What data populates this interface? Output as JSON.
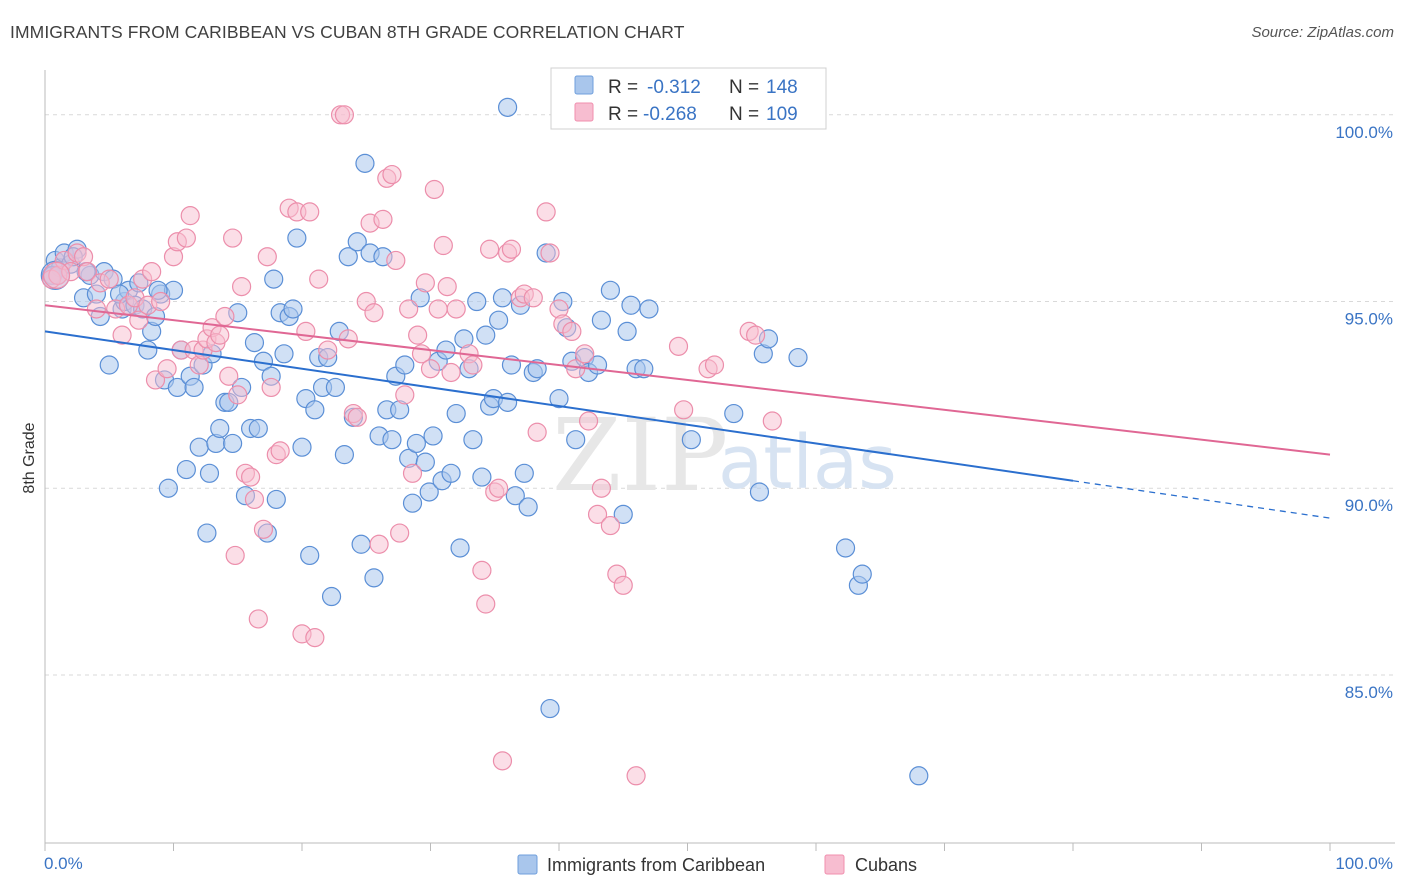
{
  "header": {
    "title": "IMMIGRANTS FROM CARIBBEAN VS CUBAN 8TH GRADE CORRELATION CHART",
    "source": "Source: ZipAtlas.com"
  },
  "watermark": {
    "zip": "ZIP",
    "atlas": "atlas"
  },
  "legend": {
    "r_label": "R =",
    "n_label": "N =",
    "entries": [
      {
        "r": "-0.312",
        "n": "148",
        "color": "#6f9fdc"
      },
      {
        "r": "-0.268",
        "n": "109",
        "color": "#f08fae"
      }
    ]
  },
  "colors": {
    "blue_fill": "#a9c6ec",
    "blue_stroke": "#5b8fd6",
    "blue_line": "#2b6fce",
    "pink_fill": "#f7bdd0",
    "pink_stroke": "#ec8eab",
    "pink_line": "#e06794",
    "grid": "#d9d9d9",
    "tick_label": "#3a74c4"
  },
  "chart_data": {
    "type": "scatter",
    "title": "IMMIGRANTS FROM CARIBBEAN VS CUBAN 8TH GRADE CORRELATION CHART",
    "xlabel": "",
    "ylabel": "8th Grade",
    "xlim": [
      0,
      100
    ],
    "ylim": [
      80.5,
      101.2
    ],
    "x_tick_labels": [
      "0.0%",
      "100.0%"
    ],
    "y_ticks": [
      85,
      90,
      95,
      100
    ],
    "y_tick_labels": [
      "85.0%",
      "90.0%",
      "95.0%",
      "100.0%"
    ],
    "grid": "horizontal dashed",
    "legend_position": "top-center",
    "series": [
      {
        "name": "Immigrants from Caribbean",
        "r": -0.312,
        "n": 148,
        "trend": {
          "x0": 0,
          "y0": 94.2,
          "x1": 80,
          "y1": 90.2,
          "x_dashed_end": 100,
          "y_dashed_end": 89.2
        },
        "points": [
          [
            0.5,
            95.7
          ],
          [
            0.8,
            96.1
          ],
          [
            1.2,
            95.9
          ],
          [
            1.5,
            96.3
          ],
          [
            2,
            96.0
          ],
          [
            2.5,
            96.4
          ],
          [
            3,
            95.1
          ],
          [
            3.5,
            95.7
          ],
          [
            4,
            95.2
          ],
          [
            4.3,
            94.6
          ],
          [
            4.6,
            95.8
          ],
          [
            5,
            93.3
          ],
          [
            5.3,
            95.6
          ],
          [
            6,
            94.8
          ],
          [
            6.2,
            95.0
          ],
          [
            6.5,
            95.3
          ],
          [
            7,
            94.9
          ],
          [
            7.3,
            95.5
          ],
          [
            7.6,
            94.8
          ],
          [
            8,
            93.7
          ],
          [
            8.3,
            94.2
          ],
          [
            8.6,
            94.6
          ],
          [
            9,
            95.2
          ],
          [
            9.3,
            92.9
          ],
          [
            9.6,
            90.0
          ],
          [
            10,
            95.3
          ],
          [
            10.3,
            92.7
          ],
          [
            10.6,
            93.7
          ],
          [
            11,
            90.5
          ],
          [
            11.3,
            93.0
          ],
          [
            11.6,
            92.7
          ],
          [
            12,
            91.1
          ],
          [
            12.3,
            93.3
          ],
          [
            12.6,
            88.8
          ],
          [
            12.8,
            90.4
          ],
          [
            13,
            93.6
          ],
          [
            13.3,
            91.2
          ],
          [
            13.6,
            91.6
          ],
          [
            14,
            92.3
          ],
          [
            14.3,
            92.3
          ],
          [
            14.6,
            91.2
          ],
          [
            15,
            94.7
          ],
          [
            15.3,
            92.7
          ],
          [
            15.6,
            89.8
          ],
          [
            16,
            91.6
          ],
          [
            16.3,
            93.9
          ],
          [
            16.6,
            91.6
          ],
          [
            17,
            93.4
          ],
          [
            17.3,
            88.8
          ],
          [
            17.6,
            93.0
          ],
          [
            17.8,
            95.6
          ],
          [
            18,
            89.7
          ],
          [
            18.3,
            94.7
          ],
          [
            18.6,
            93.6
          ],
          [
            19,
            94.6
          ],
          [
            19.3,
            94.8
          ],
          [
            19.6,
            96.7
          ],
          [
            20,
            91.1
          ],
          [
            20.3,
            92.4
          ],
          [
            20.6,
            88.2
          ],
          [
            21,
            92.1
          ],
          [
            21.3,
            93.5
          ],
          [
            21.6,
            92.7
          ],
          [
            22,
            93.5
          ],
          [
            22.3,
            87.1
          ],
          [
            22.6,
            92.7
          ],
          [
            22.9,
            94.2
          ],
          [
            23.3,
            90.9
          ],
          [
            23.6,
            96.2
          ],
          [
            24,
            91.9
          ],
          [
            24.3,
            96.6
          ],
          [
            24.6,
            88.5
          ],
          [
            24.9,
            98.7
          ],
          [
            25.3,
            96.3
          ],
          [
            25.6,
            87.6
          ],
          [
            26,
            91.4
          ],
          [
            26.3,
            96.2
          ],
          [
            26.6,
            92.1
          ],
          [
            27,
            91.3
          ],
          [
            27.3,
            93.0
          ],
          [
            27.6,
            92.1
          ],
          [
            28,
            93.3
          ],
          [
            28.3,
            90.8
          ],
          [
            28.6,
            89.6
          ],
          [
            28.9,
            91.2
          ],
          [
            29.2,
            95.1
          ],
          [
            29.6,
            90.7
          ],
          [
            29.9,
            89.9
          ],
          [
            30.2,
            91.4
          ],
          [
            30.6,
            93.4
          ],
          [
            30.9,
            90.2
          ],
          [
            31.2,
            93.7
          ],
          [
            31.6,
            90.4
          ],
          [
            32,
            92.0
          ],
          [
            32.3,
            88.4
          ],
          [
            32.6,
            94.0
          ],
          [
            33,
            93.2
          ],
          [
            33.3,
            91.3
          ],
          [
            33.6,
            95.0
          ],
          [
            34,
            90.3
          ],
          [
            34.3,
            94.1
          ],
          [
            34.6,
            92.2
          ],
          [
            34.9,
            92.4
          ],
          [
            35.3,
            94.5
          ],
          [
            35.6,
            95.1
          ],
          [
            36,
            92.3
          ],
          [
            36.3,
            93.3
          ],
          [
            36.6,
            89.8
          ],
          [
            37,
            94.9
          ],
          [
            37.3,
            90.4
          ],
          [
            37.6,
            89.5
          ],
          [
            38,
            93.1
          ],
          [
            38.3,
            93.2
          ],
          [
            39,
            96.3
          ],
          [
            39.3,
            84.1
          ],
          [
            40,
            92.4
          ],
          [
            40.3,
            95.0
          ],
          [
            40.6,
            94.3
          ],
          [
            41,
            93.4
          ],
          [
            41.3,
            91.3
          ],
          [
            42,
            93.5
          ],
          [
            42.3,
            93.1
          ],
          [
            43,
            93.3
          ],
          [
            43.3,
            94.5
          ],
          [
            45,
            89.3
          ],
          [
            45.3,
            94.2
          ],
          [
            45.6,
            94.9
          ],
          [
            46,
            93.2
          ],
          [
            46.6,
            93.2
          ],
          [
            47,
            94.8
          ],
          [
            50.3,
            91.3
          ],
          [
            53.6,
            92.0
          ],
          [
            55.6,
            89.9
          ],
          [
            55.9,
            93.6
          ],
          [
            56.3,
            94.0
          ],
          [
            58.6,
            93.5
          ],
          [
            62.3,
            88.4
          ],
          [
            63.3,
            87.4
          ],
          [
            63.6,
            87.7
          ],
          [
            68,
            82.3
          ],
          [
            0.6,
            95.7
          ],
          [
            1,
            95.7
          ],
          [
            2.2,
            96.2
          ],
          [
            3.2,
            95.8
          ],
          [
            5.8,
            95.2
          ],
          [
            8.8,
            95.3
          ],
          [
            44,
            95.3
          ],
          [
            36,
            100.2
          ]
        ]
      },
      {
        "name": "Cubans",
        "r": -0.268,
        "n": 109,
        "trend": {
          "x0": 0,
          "y0": 94.9,
          "x1": 100,
          "y1": 90.9
        },
        "points": [
          [
            0.5,
            95.6
          ],
          [
            1,
            95.7
          ],
          [
            1.5,
            96.1
          ],
          [
            2,
            95.8
          ],
          [
            2.5,
            96.3
          ],
          [
            3,
            96.2
          ],
          [
            3.3,
            95.8
          ],
          [
            4,
            94.8
          ],
          [
            4.3,
            95.5
          ],
          [
            5,
            95.6
          ],
          [
            5.5,
            94.8
          ],
          [
            6,
            94.1
          ],
          [
            6.5,
            94.9
          ],
          [
            7,
            95.1
          ],
          [
            7.3,
            94.5
          ],
          [
            7.6,
            95.6
          ],
          [
            8,
            94.9
          ],
          [
            8.3,
            95.8
          ],
          [
            8.6,
            92.9
          ],
          [
            9,
            95.0
          ],
          [
            9.5,
            93.2
          ],
          [
            10,
            96.2
          ],
          [
            10.3,
            96.6
          ],
          [
            10.6,
            93.7
          ],
          [
            11,
            96.7
          ],
          [
            11.3,
            97.3
          ],
          [
            11.6,
            93.7
          ],
          [
            12,
            93.3
          ],
          [
            12.3,
            93.7
          ],
          [
            12.6,
            94.0
          ],
          [
            13,
            94.3
          ],
          [
            13.3,
            93.9
          ],
          [
            13.6,
            94.1
          ],
          [
            14,
            94.6
          ],
          [
            14.3,
            93.0
          ],
          [
            14.6,
            96.7
          ],
          [
            14.8,
            88.2
          ],
          [
            15,
            92.5
          ],
          [
            15.3,
            95.4
          ],
          [
            15.6,
            90.4
          ],
          [
            16,
            90.3
          ],
          [
            16.3,
            89.7
          ],
          [
            16.6,
            86.5
          ],
          [
            17,
            88.9
          ],
          [
            17.3,
            96.2
          ],
          [
            17.6,
            92.7
          ],
          [
            18,
            90.9
          ],
          [
            18.3,
            91.0
          ],
          [
            19,
            97.5
          ],
          [
            19.6,
            97.4
          ],
          [
            20,
            86.1
          ],
          [
            20.3,
            94.2
          ],
          [
            20.6,
            97.4
          ],
          [
            21,
            86.0
          ],
          [
            21.3,
            95.6
          ],
          [
            22,
            93.7
          ],
          [
            23,
            100.0
          ],
          [
            23.3,
            100.0
          ],
          [
            23.6,
            94.0
          ],
          [
            24,
            92.0
          ],
          [
            24.3,
            91.9
          ],
          [
            25,
            95.0
          ],
          [
            25.3,
            97.1
          ],
          [
            25.6,
            94.7
          ],
          [
            26,
            88.5
          ],
          [
            26.3,
            97.2
          ],
          [
            26.6,
            98.3
          ],
          [
            27,
            98.4
          ],
          [
            27.3,
            96.1
          ],
          [
            27.6,
            88.8
          ],
          [
            28,
            92.5
          ],
          [
            28.3,
            94.8
          ],
          [
            28.6,
            90.4
          ],
          [
            29,
            94.1
          ],
          [
            29.3,
            93.6
          ],
          [
            29.6,
            95.5
          ],
          [
            30,
            93.2
          ],
          [
            30.3,
            98.0
          ],
          [
            30.6,
            94.8
          ],
          [
            31,
            96.5
          ],
          [
            31.3,
            95.4
          ],
          [
            31.6,
            93.1
          ],
          [
            32,
            94.8
          ],
          [
            33,
            93.6
          ],
          [
            33.3,
            93.3
          ],
          [
            34,
            87.8
          ],
          [
            34.3,
            86.9
          ],
          [
            34.6,
            96.4
          ],
          [
            35,
            89.9
          ],
          [
            35.3,
            90.0
          ],
          [
            35.6,
            82.7
          ],
          [
            36,
            96.3
          ],
          [
            36.3,
            96.4
          ],
          [
            37,
            95.1
          ],
          [
            37.3,
            95.2
          ],
          [
            38,
            95.1
          ],
          [
            38.3,
            91.5
          ],
          [
            39,
            97.4
          ],
          [
            39.3,
            96.3
          ],
          [
            40,
            94.8
          ],
          [
            40.3,
            94.4
          ],
          [
            41,
            94.2
          ],
          [
            41.3,
            93.2
          ],
          [
            42,
            93.6
          ],
          [
            42.3,
            91.8
          ],
          [
            43,
            89.3
          ],
          [
            43.3,
            90.0
          ],
          [
            44,
            89.0
          ],
          [
            44.5,
            87.7
          ],
          [
            45,
            87.4
          ],
          [
            46,
            82.3
          ],
          [
            48,
            100.1
          ],
          [
            49.3,
            93.8
          ],
          [
            49.7,
            92.1
          ],
          [
            51.6,
            93.2
          ],
          [
            52.1,
            93.3
          ],
          [
            54.8,
            94.2
          ],
          [
            55.3,
            94.1
          ],
          [
            56.6,
            91.8
          ]
        ]
      }
    ]
  },
  "bottom_legend": [
    "Immigrants from Caribbean",
    "Cubans"
  ]
}
